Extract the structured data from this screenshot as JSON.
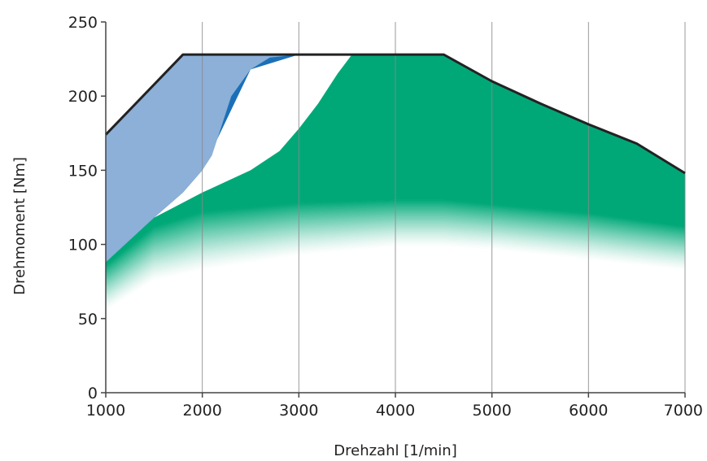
{
  "chart_data": {
    "type": "area",
    "xlabel": "Drehzahl [1/min]",
    "ylabel": "Drehmoment [Nm]",
    "xlim": [
      1000,
      7000
    ],
    "ylim": [
      0,
      250
    ],
    "x_ticks": [
      "1000",
      "2000",
      "3000",
      "4000",
      "5000",
      "6000",
      "7000"
    ],
    "y_ticks": [
      "0",
      "50",
      "100",
      "150",
      "200",
      "250"
    ],
    "grid": "vertical",
    "colors": {
      "full_load": "#1a70b8",
      "light_blue": "#8cb0d8",
      "green": "#00a878",
      "outline": "#222222"
    },
    "series": [
      {
        "role": "full-load-curve",
        "x": [
          1000,
          1800,
          2500,
          3000,
          3500,
          4000,
          4500,
          5000,
          5500,
          6000,
          6500,
          7000
        ],
        "y": [
          174,
          228,
          228,
          228,
          228,
          228,
          228,
          210,
          195,
          181,
          168,
          148
        ]
      },
      {
        "role": "light-blue-lower-boundary",
        "x": [
          1000,
          1500,
          1800,
          2000,
          2100,
          2200,
          2300,
          2500,
          2700,
          3000,
          3300,
          3500
        ],
        "y": [
          88,
          118,
          135,
          150,
          160,
          180,
          200,
          218,
          226,
          228,
          228,
          228
        ]
      },
      {
        "role": "green-upper-boundary",
        "x": [
          1000,
          1500,
          2000,
          2500,
          2800,
          3000,
          3200,
          3400,
          3550,
          4000,
          4500,
          5000,
          5500,
          6000,
          6500,
          7000
        ],
        "y": [
          88,
          118,
          135,
          150,
          163,
          178,
          195,
          215,
          228,
          228,
          228,
          210,
          195,
          181,
          168,
          148
        ]
      },
      {
        "role": "green-solid-lower-edge",
        "x": [
          1000,
          1500,
          2000,
          3000,
          4000,
          4500,
          5000,
          6000,
          7000
        ],
        "y": [
          86,
          112,
          122,
          128,
          130,
          130,
          127,
          121,
          112
        ]
      },
      {
        "role": "green-fade-bottom-edge",
        "x": [
          1000,
          1500,
          2000,
          3000,
          4000,
          4500,
          5000,
          6000,
          7000
        ],
        "y": [
          55,
          75,
          82,
          92,
          98,
          98,
          96,
          89,
          82
        ]
      }
    ]
  }
}
